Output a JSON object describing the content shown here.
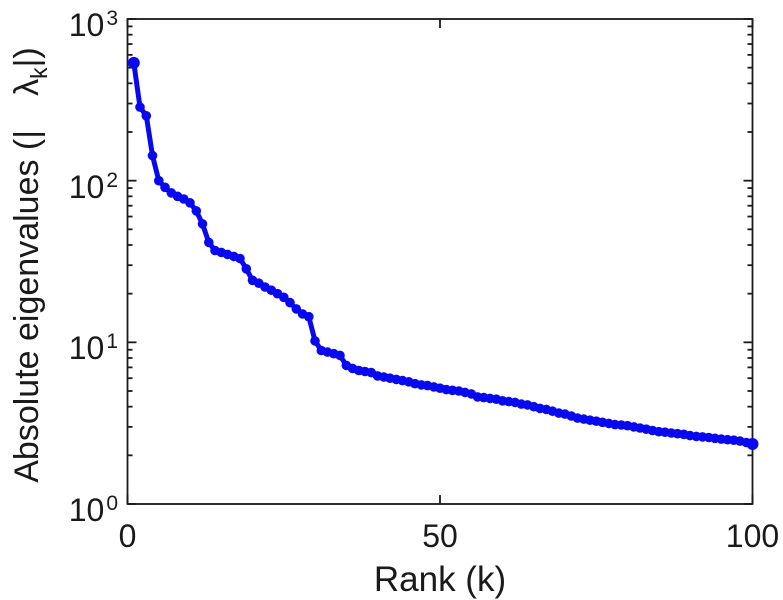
{
  "figure": {
    "background_color": "#ffffff",
    "axis_color": "#1a1a1a",
    "text_color": "#1a1a1a"
  },
  "chart_data": {
    "type": "line",
    "title": "",
    "xlabel": "Rank (k)",
    "ylabel_parts": {
      "prefix": "Absolute eigenvalues (|",
      "symbol": "λ",
      "subscript": "k",
      "suffix": "|)"
    },
    "xlim": [
      0,
      100
    ],
    "ylim": [
      1,
      1000
    ],
    "yscale": "log",
    "grid": "off",
    "legend": "none",
    "box": "on",
    "tick_direction": "in",
    "x_ticks": [
      {
        "value": 0,
        "label": "0"
      },
      {
        "value": 50,
        "label": "50"
      },
      {
        "value": 100,
        "label": "100"
      }
    ],
    "y_ticks": [
      {
        "exponent": 0,
        "base": "10"
      },
      {
        "exponent": 1,
        "base": "10"
      },
      {
        "exponent": 2,
        "base": "10"
      },
      {
        "exponent": 3,
        "base": "10"
      }
    ],
    "y_minor_tick_mantissas": [
      2,
      3,
      4,
      5,
      6,
      7,
      8,
      9
    ],
    "series": [
      {
        "name": "absolute-eigenvalues",
        "color": "#0909f0",
        "marker": "dot",
        "x": [
          1,
          2,
          3,
          4,
          5,
          6,
          7,
          8,
          9,
          10,
          11,
          12,
          13,
          14,
          15,
          16,
          17,
          18,
          19,
          20,
          21,
          22,
          23,
          24,
          25,
          26,
          27,
          28,
          29,
          30,
          31,
          32,
          33,
          34,
          35,
          36,
          37,
          38,
          39,
          40,
          41,
          42,
          43,
          44,
          45,
          46,
          47,
          48,
          49,
          50,
          51,
          52,
          53,
          54,
          55,
          56,
          57,
          58,
          59,
          60,
          61,
          62,
          63,
          64,
          65,
          66,
          67,
          68,
          69,
          70,
          71,
          72,
          73,
          74,
          75,
          76,
          77,
          78,
          79,
          80,
          81,
          82,
          83,
          84,
          85,
          86,
          87,
          88,
          89,
          90,
          91,
          92,
          93,
          94,
          95,
          96,
          97,
          98,
          99,
          100
        ],
        "values": [
          535,
          285,
          252,
          143,
          100,
          91,
          84,
          80,
          77,
          73,
          65,
          54,
          41.5,
          37,
          36,
          35,
          34,
          33,
          28.5,
          24.2,
          23.2,
          22,
          21,
          20,
          19,
          17.6,
          16.1,
          15,
          14.4,
          10.2,
          8.9,
          8.7,
          8.5,
          8.3,
          7.2,
          6.9,
          6.7,
          6.6,
          6.5,
          6.2,
          6.1,
          6.0,
          5.9,
          5.8,
          5.7,
          5.55,
          5.45,
          5.4,
          5.3,
          5.2,
          5.1,
          5.05,
          5.0,
          4.9,
          4.8,
          4.6,
          4.55,
          4.5,
          4.45,
          4.35,
          4.3,
          4.25,
          4.15,
          4.1,
          4.0,
          3.9,
          3.85,
          3.75,
          3.65,
          3.6,
          3.5,
          3.4,
          3.35,
          3.3,
          3.25,
          3.2,
          3.15,
          3.1,
          3.08,
          3.05,
          3.0,
          2.95,
          2.9,
          2.85,
          2.8,
          2.78,
          2.75,
          2.72,
          2.7,
          2.65,
          2.62,
          2.6,
          2.58,
          2.55,
          2.52,
          2.5,
          2.48,
          2.45,
          2.4,
          2.35
        ]
      }
    ]
  }
}
